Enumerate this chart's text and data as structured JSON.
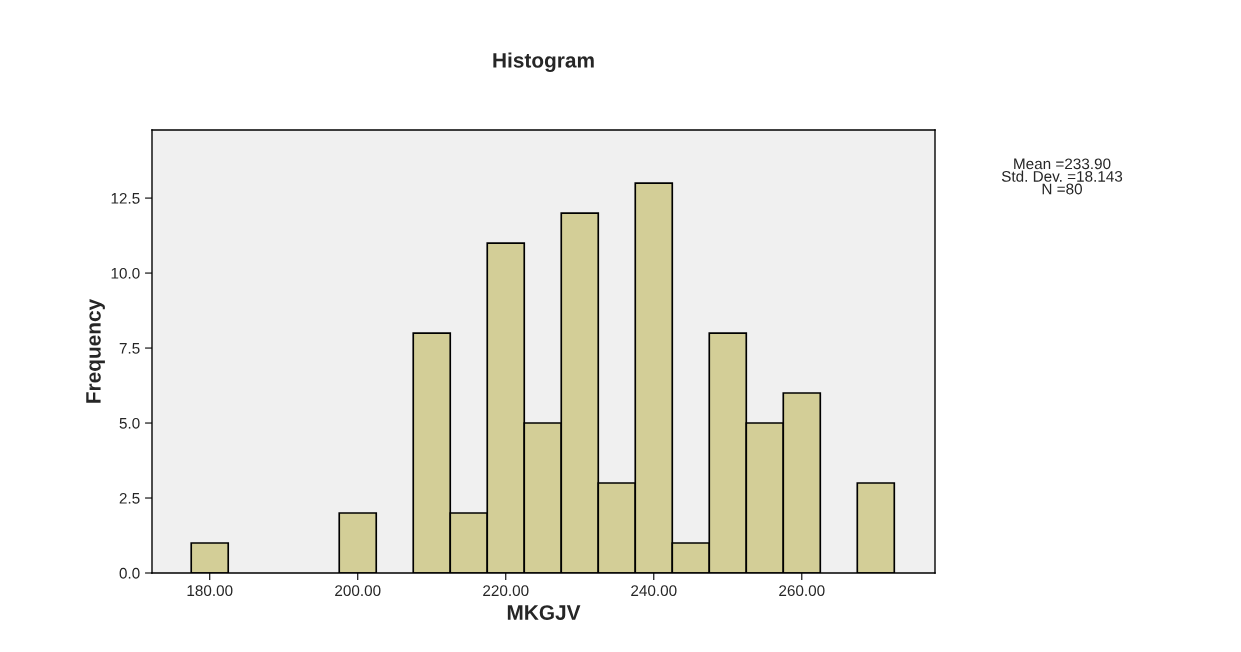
{
  "chart_data": {
    "type": "histogram",
    "title": "Histogram",
    "xlabel": "MKGJV",
    "ylabel": "Frequency",
    "bins": [
      177.5,
      182.5,
      187.5,
      192.5,
      197.5,
      202.5,
      207.5,
      212.5,
      217.5,
      222.5,
      227.5,
      232.5,
      237.5,
      242.5,
      247.5,
      252.5,
      257.5,
      262.5,
      267.5,
      272.5
    ],
    "values": [
      1,
      0,
      0,
      0,
      2,
      0,
      8,
      2,
      11,
      5,
      12,
      3,
      13,
      1,
      8,
      5,
      6,
      0,
      3
    ],
    "color": "#d3ce97",
    "xlim": [
      172.2,
      278
    ],
    "xticks": [
      {
        "value": 180,
        "label": "180.00"
      },
      {
        "value": 200,
        "label": "200.00"
      },
      {
        "value": 220,
        "label": "220.00"
      },
      {
        "value": 240,
        "label": "240.00"
      },
      {
        "value": 260,
        "label": "260.00"
      }
    ],
    "ylim": [
      0,
      14.77
    ],
    "yticks": [
      {
        "value": 0,
        "label": "0.0"
      },
      {
        "value": 2.5,
        "label": "2.5"
      },
      {
        "value": 5,
        "label": "5.0"
      },
      {
        "value": 7.5,
        "label": "7.5"
      },
      {
        "value": 10,
        "label": "10.0"
      },
      {
        "value": 12.5,
        "label": "12.5"
      }
    ],
    "grid": false,
    "annotations": [
      "Mean =233.90\nStd. Dev. =18.143\nN =80"
    ]
  }
}
